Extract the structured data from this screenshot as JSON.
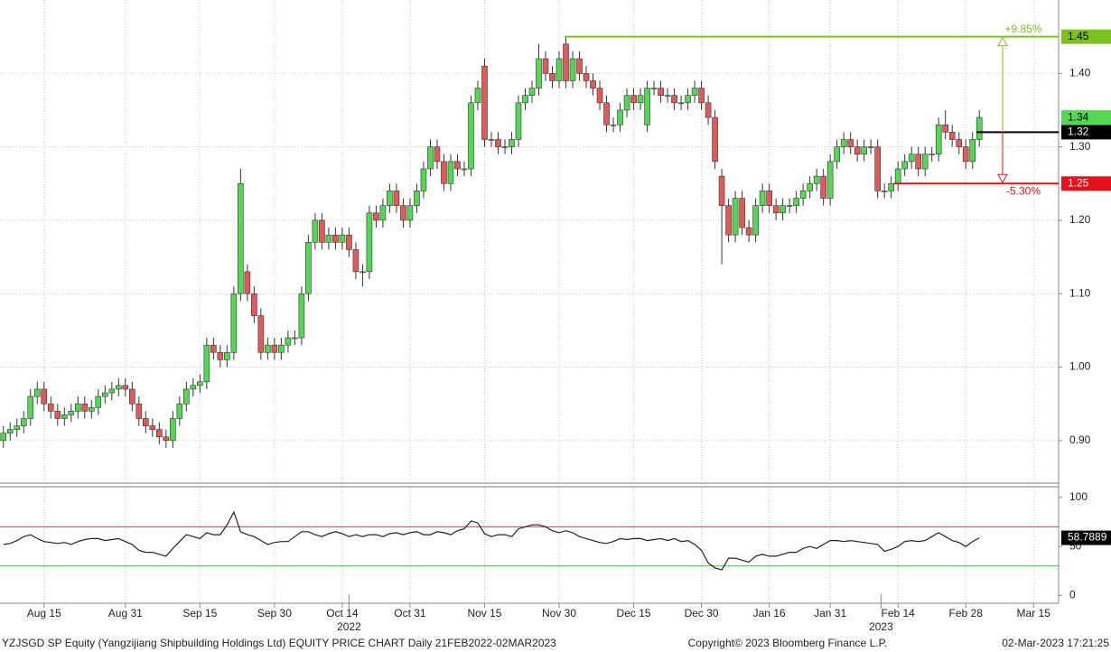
{
  "chart_data": [
    {
      "type": "candlestick",
      "xlim": [
        -0.5,
        155.7
      ],
      "ylim": [
        0.842,
        1.5
      ],
      "yticks": [
        {
          "value": 0.9,
          "label": "0.90"
        },
        {
          "value": 1,
          "label": "1.00"
        },
        {
          "value": 1.1,
          "label": "1.10"
        },
        {
          "value": 1.2,
          "label": "1.20"
        },
        {
          "value": 1.3,
          "label": "1.30"
        },
        {
          "value": 1.4,
          "label": "1.40"
        }
      ],
      "grid": true,
      "up_color": "#55d655",
      "down_color": "#e05a5a",
      "open": [
        0.9,
        0.91,
        0.915,
        0.92,
        0.93,
        0.96,
        0.97,
        0.95,
        0.94,
        0.93,
        0.935,
        0.94,
        0.95,
        0.94,
        0.945,
        0.96,
        0.965,
        0.97,
        0.975,
        0.97,
        0.95,
        0.93,
        0.92,
        0.915,
        0.905,
        0.9,
        0.93,
        0.95,
        0.97,
        0.975,
        0.98,
        1.03,
        1.02,
        1.01,
        1.02,
        1.1,
        1.13,
        1.1,
        1.07,
        1.02,
        1.03,
        1.02,
        1.03,
        1.04,
        1.04,
        1.1,
        1.17,
        1.2,
        1.17,
        1.18,
        1.17,
        1.18,
        1.16,
        1.13,
        1.13,
        1.21,
        1.2,
        1.22,
        1.24,
        1.22,
        1.2,
        1.22,
        1.24,
        1.27,
        1.3,
        1.28,
        1.25,
        1.28,
        1.27,
        1.27,
        1.36,
        1.41,
        1.31,
        1.31,
        1.3,
        1.3,
        1.31,
        1.36,
        1.37,
        1.38,
        1.42,
        1.4,
        1.39,
        1.44,
        1.39,
        1.42,
        1.4,
        1.39,
        1.38,
        1.36,
        1.33,
        1.33,
        1.35,
        1.37,
        1.36,
        1.33,
        1.38,
        1.38,
        1.37,
        1.37,
        1.36,
        1.36,
        1.37,
        1.38,
        1.36,
        1.34,
        1.26,
        1.22,
        1.18,
        1.23,
        1.19,
        1.18,
        1.22,
        1.24,
        1.22,
        1.21,
        1.22,
        1.22,
        1.23,
        1.24,
        1.25,
        1.26,
        1.23,
        1.28,
        1.3,
        1.31,
        1.3,
        1.29,
        1.3,
        1.3,
        1.24,
        1.24,
        1.25,
        1.27,
        1.28,
        1.29,
        1.27,
        1.29,
        1.29,
        1.33,
        1.32,
        1.31,
        1.3,
        1.28,
        1.31
      ],
      "high": [
        0.92,
        0.925,
        0.93,
        0.94,
        0.97,
        0.98,
        0.98,
        0.96,
        0.95,
        0.945,
        0.95,
        0.96,
        0.96,
        0.955,
        0.97,
        0.975,
        0.98,
        0.985,
        0.985,
        0.98,
        0.96,
        0.94,
        0.93,
        0.925,
        0.915,
        0.94,
        0.96,
        0.98,
        0.985,
        0.99,
        1.04,
        1.04,
        1.03,
        1.03,
        1.11,
        1.27,
        1.14,
        1.11,
        1.08,
        1.04,
        1.04,
        1.04,
        1.05,
        1.05,
        1.11,
        1.18,
        1.21,
        1.21,
        1.19,
        1.19,
        1.19,
        1.19,
        1.17,
        1.14,
        1.22,
        1.22,
        1.23,
        1.25,
        1.25,
        1.23,
        1.23,
        1.25,
        1.28,
        1.31,
        1.31,
        1.29,
        1.29,
        1.29,
        1.28,
        1.37,
        1.39,
        1.42,
        1.32,
        1.32,
        1.31,
        1.32,
        1.37,
        1.38,
        1.39,
        1.44,
        1.43,
        1.41,
        1.43,
        1.45,
        1.43,
        1.43,
        1.41,
        1.4,
        1.39,
        1.37,
        1.34,
        1.36,
        1.38,
        1.38,
        1.38,
        1.39,
        1.39,
        1.39,
        1.38,
        1.38,
        1.37,
        1.38,
        1.39,
        1.39,
        1.37,
        1.35,
        1.27,
        1.23,
        1.24,
        1.24,
        1.2,
        1.23,
        1.25,
        1.25,
        1.23,
        1.23,
        1.23,
        1.24,
        1.25,
        1.26,
        1.27,
        1.27,
        1.29,
        1.31,
        1.32,
        1.32,
        1.31,
        1.31,
        1.31,
        1.31,
        1.25,
        1.26,
        1.28,
        1.29,
        1.3,
        1.3,
        1.3,
        1.3,
        1.34,
        1.35,
        1.33,
        1.32,
        1.31,
        1.32,
        1.35
      ],
      "low": [
        0.89,
        0.9,
        0.905,
        0.91,
        0.92,
        0.95,
        0.94,
        0.93,
        0.92,
        0.92,
        0.925,
        0.93,
        0.93,
        0.93,
        0.935,
        0.95,
        0.955,
        0.96,
        0.96,
        0.94,
        0.92,
        0.91,
        0.905,
        0.895,
        0.89,
        0.89,
        0.92,
        0.94,
        0.96,
        0.965,
        0.97,
        1.01,
        1.0,
        1.0,
        1.01,
        1.09,
        1.09,
        1.06,
        1.01,
        1.01,
        1.01,
        1.01,
        1.02,
        1.03,
        1.03,
        1.09,
        1.16,
        1.16,
        1.16,
        1.16,
        1.16,
        1.15,
        1.12,
        1.11,
        1.12,
        1.19,
        1.19,
        1.21,
        1.21,
        1.19,
        1.19,
        1.21,
        1.23,
        1.26,
        1.27,
        1.24,
        1.24,
        1.26,
        1.26,
        1.26,
        1.35,
        1.3,
        1.3,
        1.29,
        1.29,
        1.29,
        1.3,
        1.35,
        1.36,
        1.37,
        1.39,
        1.38,
        1.38,
        1.38,
        1.38,
        1.39,
        1.38,
        1.37,
        1.35,
        1.32,
        1.32,
        1.32,
        1.34,
        1.35,
        1.35,
        1.32,
        1.37,
        1.36,
        1.36,
        1.35,
        1.35,
        1.35,
        1.36,
        1.35,
        1.33,
        1.27,
        1.14,
        1.17,
        1.17,
        1.18,
        1.17,
        1.17,
        1.21,
        1.21,
        1.2,
        1.2,
        1.21,
        1.21,
        1.22,
        1.23,
        1.24,
        1.22,
        1.22,
        1.27,
        1.29,
        1.29,
        1.28,
        1.28,
        1.29,
        1.23,
        1.23,
        1.23,
        1.24,
        1.26,
        1.27,
        1.26,
        1.26,
        1.28,
        1.28,
        1.31,
        1.3,
        1.29,
        1.27,
        1.27,
        1.3
      ],
      "close": [
        0.91,
        0.915,
        0.92,
        0.93,
        0.96,
        0.97,
        0.95,
        0.94,
        0.93,
        0.935,
        0.94,
        0.95,
        0.94,
        0.945,
        0.96,
        0.965,
        0.97,
        0.975,
        0.97,
        0.95,
        0.93,
        0.92,
        0.915,
        0.905,
        0.9,
        0.93,
        0.95,
        0.97,
        0.975,
        0.98,
        1.03,
        1.02,
        1.01,
        1.02,
        1.1,
        1.25,
        1.1,
        1.07,
        1.02,
        1.03,
        1.02,
        1.03,
        1.04,
        1.04,
        1.1,
        1.17,
        1.2,
        1.17,
        1.18,
        1.17,
        1.18,
        1.16,
        1.13,
        1.13,
        1.21,
        1.2,
        1.22,
        1.24,
        1.22,
        1.2,
        1.22,
        1.24,
        1.27,
        1.3,
        1.28,
        1.25,
        1.28,
        1.27,
        1.27,
        1.36,
        1.38,
        1.31,
        1.31,
        1.3,
        1.3,
        1.31,
        1.36,
        1.37,
        1.38,
        1.42,
        1.4,
        1.39,
        1.42,
        1.39,
        1.42,
        1.4,
        1.39,
        1.38,
        1.36,
        1.33,
        1.33,
        1.35,
        1.37,
        1.36,
        1.37,
        1.38,
        1.38,
        1.37,
        1.37,
        1.36,
        1.36,
        1.37,
        1.38,
        1.36,
        1.34,
        1.28,
        1.22,
        1.18,
        1.23,
        1.19,
        1.18,
        1.22,
        1.24,
        1.22,
        1.21,
        1.22,
        1.22,
        1.23,
        1.24,
        1.25,
        1.26,
        1.23,
        1.28,
        1.3,
        1.31,
        1.3,
        1.29,
        1.3,
        1.3,
        1.24,
        1.24,
        1.25,
        1.27,
        1.28,
        1.29,
        1.27,
        1.29,
        1.29,
        1.33,
        1.32,
        1.31,
        1.3,
        1.28,
        1.31,
        1.34
      ],
      "annotations": {
        "high_line": 1.45,
        "high_label": "+9.85%",
        "high_color": "#7cc21e",
        "low_line": 1.25,
        "low_label": "-5.30%",
        "low_color": "#e8101a",
        "ref_line": 1.32,
        "ref_color": "#000000"
      }
    },
    {
      "type": "line",
      "ylim": [
        -8,
        110
      ],
      "yticks": [
        0,
        50,
        100
      ],
      "overbought": 70,
      "oversold": 30,
      "overbought_color": "#d84040",
      "oversold_color": "#3cc43c",
      "series": [
        {
          "color": "#222222",
          "values": [
            52,
            53,
            56,
            60,
            62,
            58,
            55,
            54,
            53,
            54,
            52,
            55,
            57,
            58,
            58,
            56,
            57,
            58,
            55,
            52,
            46,
            44,
            44,
            42,
            40,
            48,
            55,
            62,
            60,
            58,
            64,
            62,
            62,
            72,
            85,
            65,
            62,
            60,
            56,
            52,
            54,
            55,
            55,
            60,
            65,
            65,
            62,
            60,
            63,
            65,
            63,
            60,
            62,
            60,
            62,
            62,
            60,
            63,
            64,
            62,
            64,
            65,
            62,
            62,
            65,
            64,
            62,
            66,
            68,
            76,
            74,
            63,
            60,
            62,
            62,
            60,
            68,
            70,
            72,
            72,
            70,
            66,
            64,
            66,
            64,
            60,
            58,
            56,
            54,
            53,
            55,
            58,
            57,
            58,
            58,
            56,
            57,
            58,
            56,
            58,
            55,
            56,
            52,
            46,
            33,
            28,
            26,
            38,
            38,
            36,
            34,
            40,
            42,
            40,
            40,
            42,
            44,
            44,
            48,
            50,
            48,
            52,
            56,
            56,
            55,
            56,
            55,
            54,
            53,
            52,
            45,
            47,
            50,
            55,
            56,
            55,
            56,
            60,
            64,
            60,
            56,
            54,
            50,
            55,
            58.7889
          ]
        }
      ],
      "xticks": [
        {
          "value": 6,
          "label": "Aug 15"
        },
        {
          "value": 18,
          "label": "Aug 31"
        },
        {
          "value": 29,
          "label": "Sep 15"
        },
        {
          "value": 40,
          "label": "Sep 30"
        },
        {
          "value": 50,
          "label": "Oct 14"
        },
        {
          "value": 60,
          "label": "Oct 31"
        },
        {
          "value": 71,
          "label": "Nov 15"
        },
        {
          "value": 82,
          "label": "Nov 30"
        },
        {
          "value": 93,
          "label": "Dec 15"
        },
        {
          "value": 103,
          "label": "Dec 30"
        },
        {
          "value": 113,
          "label": "Jan 16"
        },
        {
          "value": 122,
          "label": "Jan 31"
        },
        {
          "value": 132,
          "label": "Feb 14"
        },
        {
          "value": 142,
          "label": "Feb 28"
        },
        {
          "value": 152,
          "label": "Mar 15"
        }
      ],
      "years": [
        {
          "value": 51,
          "label": "2022"
        },
        {
          "value": 129.5,
          "label": "2023"
        }
      ]
    }
  ],
  "footer": {
    "left": "YZJSGD SP Equity (Yangzijiang Shipbuilding Holdings Ltd) EQUITY PRICE CHART  Daily 21FEB2022-02MAR2023",
    "center": "Copyright© 2023 Bloomberg Finance L.P.",
    "right": "02-Mar-2023  17:21:25"
  }
}
